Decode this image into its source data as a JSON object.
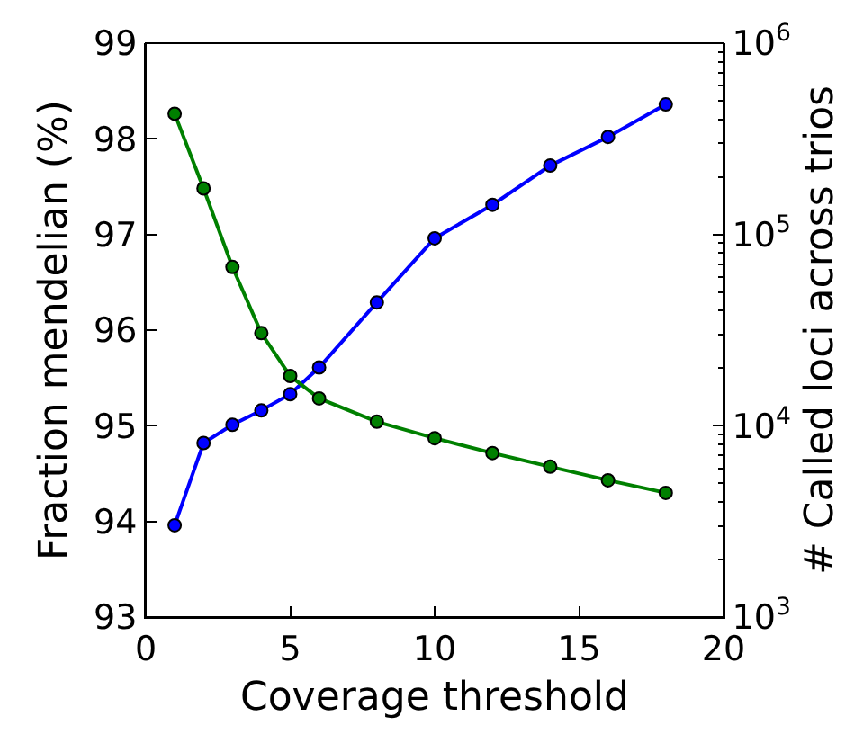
{
  "chart_data": {
    "type": "line",
    "xlabel": "Coverage threshold",
    "ylabel": "Fraction mendelian (%)",
    "y2label": "# Called loci across trios",
    "x": [
      1,
      2,
      3,
      4,
      5,
      6,
      8,
      10,
      12,
      14,
      16,
      18
    ],
    "series": [
      {
        "color": "#0000ff",
        "values": [
          93.96,
          94.82,
          95.01,
          95.16,
          95.33,
          95.61,
          96.29,
          96.96,
          97.31,
          97.72,
          98.02,
          98.36
        ]
      },
      {
        "color": "#008000",
        "axis": "y2",
        "values": [
          428000,
          174000,
          67600,
          30500,
          18200,
          13900,
          10500,
          8610,
          7200,
          6110,
          5190,
          4460
        ]
      }
    ],
    "xlim": [
      0,
      20
    ],
    "xticks": [
      0,
      5,
      10,
      15,
      20
    ],
    "ylim": [
      93,
      99
    ],
    "yticks": [
      93,
      94,
      95,
      96,
      97,
      98,
      99
    ],
    "y2lim": [
      1000,
      1000000
    ],
    "y2ticks": [
      {
        "value": 1000,
        "label": "10$^{3}$"
      },
      {
        "value": 10000,
        "label": "10$^{4}$"
      },
      {
        "value": 100000,
        "label": "10$^{5}$"
      },
      {
        "value": 1000000,
        "label": "10$^{6}$"
      }
    ],
    "log": "y2",
    "legend": false,
    "marker": "circle",
    "line_style": "solid"
  }
}
